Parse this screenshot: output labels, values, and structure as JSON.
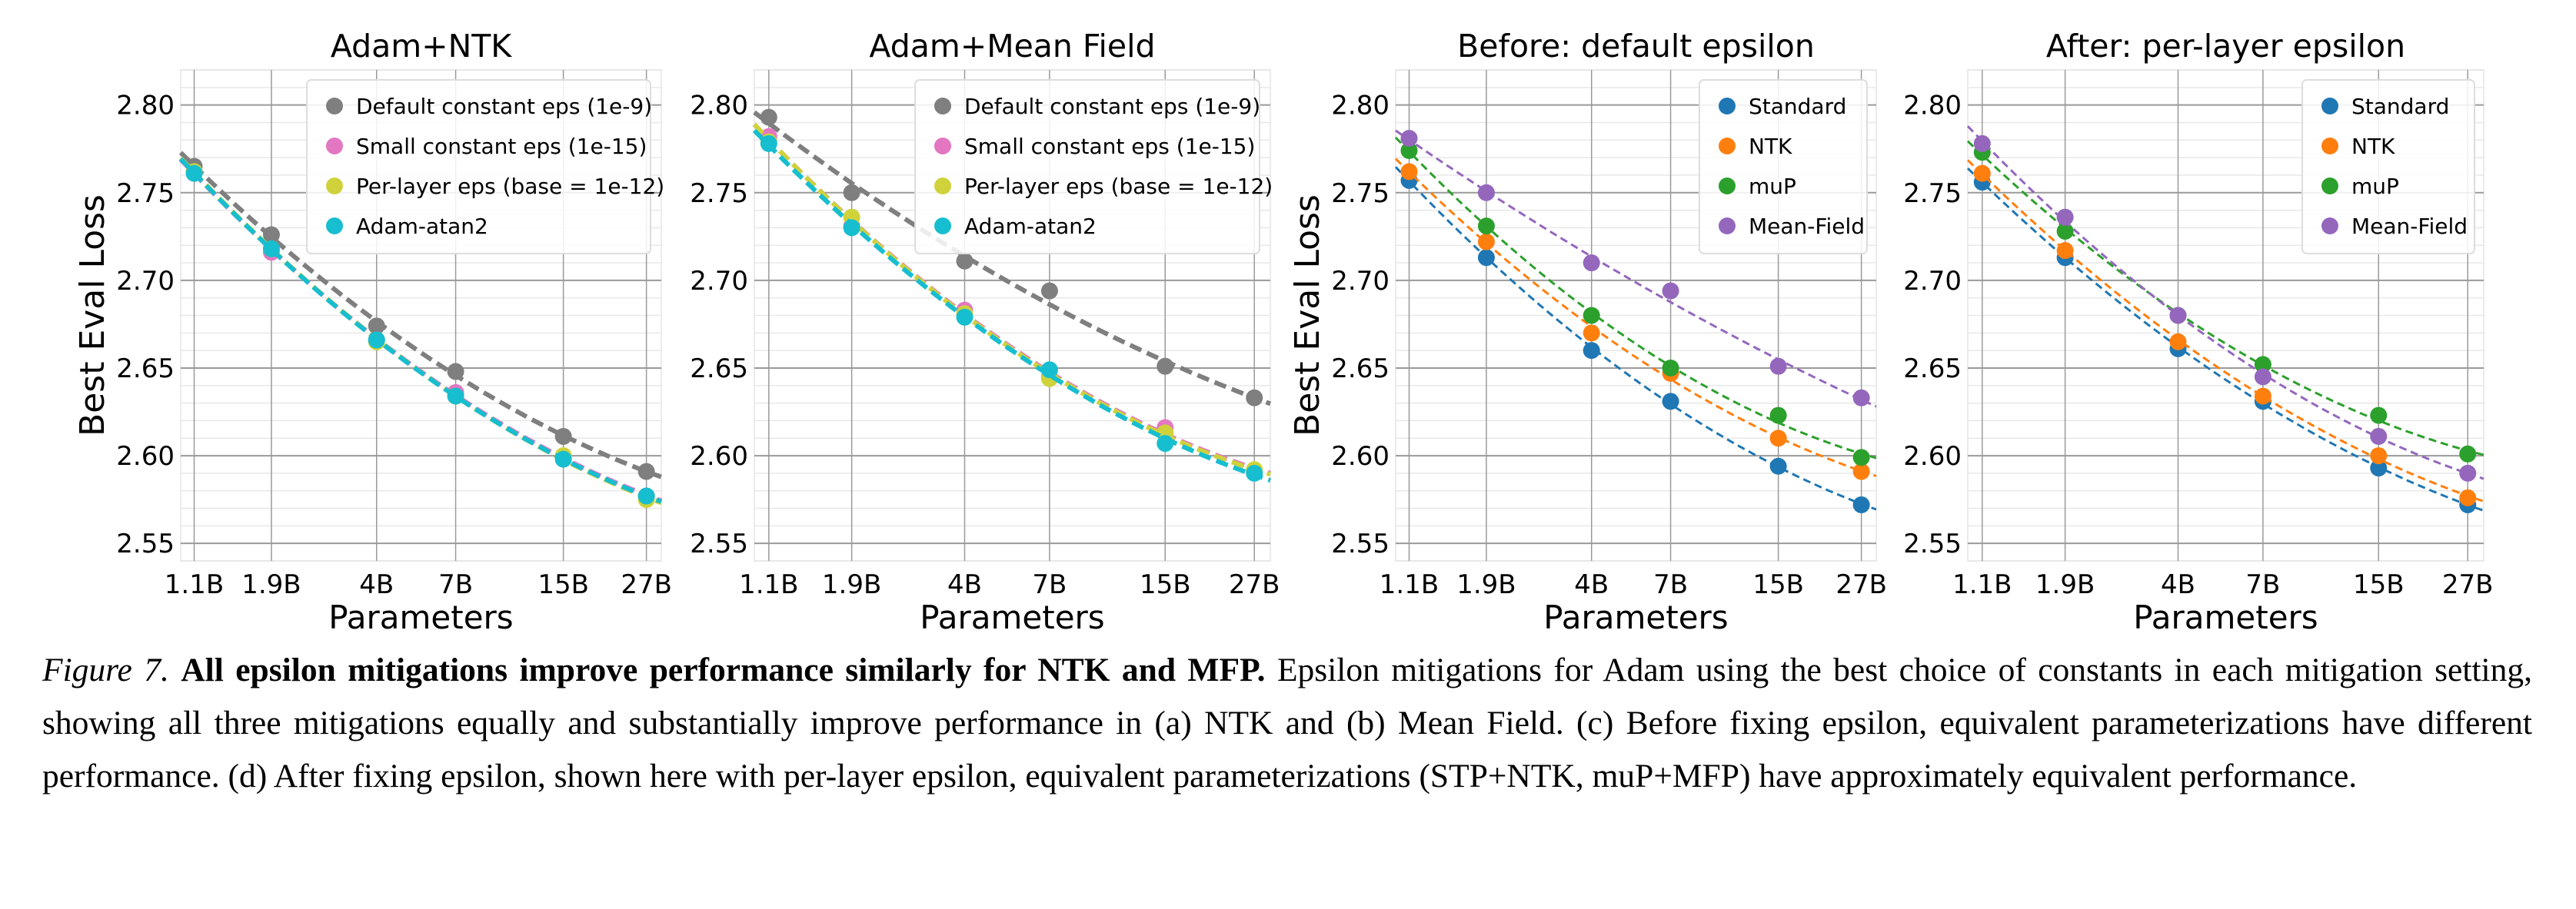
{
  "figure": {
    "label": "Figure 7.",
    "title": "All epsilon mitigations improve performance similarly for NTK and MFP.",
    "body": "Epsilon mitigations for Adam using the best choice of constants in each mitigation setting, showing all three mitigations equally and substantially improve performance in (a) NTK and (b) Mean Field. (c) Before fixing epsilon, equivalent parameterizations have different performance. (d) After fixing epsilon, shown here with per-layer epsilon, equivalent parameterizations (STP+NTK, muP+MFP) have approximately equivalent performance."
  },
  "chart_data": [
    {
      "type": "scatter",
      "title": "Adam+NTK",
      "xlabel": "Parameters",
      "ylabel": "Best Eval Loss",
      "xscale": "log",
      "x": [
        1.1,
        1.9,
        4,
        7,
        15,
        27
      ],
      "xtick_labels": [
        "1.1B",
        "1.9B",
        "4B",
        "7B",
        "15B",
        "27B"
      ],
      "yticks": [
        "2.55",
        "2.60",
        "2.65",
        "2.70",
        "2.75",
        "2.80"
      ],
      "xlim": [
        1.0,
        30
      ],
      "ylim": [
        2.54,
        2.82
      ],
      "grid": true,
      "legend": "top-right",
      "fit_lines": "dashed",
      "series": [
        {
          "name": "Default constant eps (1e-9)",
          "color": "#7f7f7f",
          "values": [
            2.765,
            2.726,
            2.674,
            2.648,
            2.611,
            2.591
          ]
        },
        {
          "name": "Small constant eps (1e-15)",
          "color": "#e377c2",
          "values": [
            2.762,
            2.716,
            2.666,
            2.636,
            2.599,
            2.577
          ]
        },
        {
          "name": "Per-layer eps (base = 1e-12)",
          "color": "#cfd23a",
          "values": [
            2.762,
            2.718,
            2.665,
            2.634,
            2.6,
            2.575
          ]
        },
        {
          "name": "Adam-atan2",
          "color": "#17becf",
          "values": [
            2.761,
            2.718,
            2.666,
            2.634,
            2.598,
            2.577
          ]
        }
      ]
    },
    {
      "type": "scatter",
      "title": "Adam+Mean Field",
      "xlabel": "Parameters",
      "ylabel": "",
      "xscale": "log",
      "x": [
        1.1,
        1.9,
        4,
        7,
        15,
        27
      ],
      "xtick_labels": [
        "1.1B",
        "1.9B",
        "4B",
        "7B",
        "15B",
        "27B"
      ],
      "yticks": [
        "2.55",
        "2.60",
        "2.65",
        "2.70",
        "2.75",
        "2.80"
      ],
      "xlim": [
        1.0,
        30
      ],
      "ylim": [
        2.54,
        2.82
      ],
      "grid": true,
      "legend": "top-right",
      "fit_lines": "dashed",
      "series": [
        {
          "name": "Default constant eps (1e-9)",
          "color": "#7f7f7f",
          "values": [
            2.793,
            2.75,
            2.711,
            2.694,
            2.651,
            2.633
          ]
        },
        {
          "name": "Small constant eps (1e-15)",
          "color": "#e377c2",
          "values": [
            2.782,
            2.731,
            2.683,
            2.645,
            2.616,
            2.591
          ]
        },
        {
          "name": "Per-layer eps (base = 1e-12)",
          "color": "#cfd23a",
          "values": [
            2.779,
            2.736,
            2.681,
            2.644,
            2.613,
            2.592
          ]
        },
        {
          "name": "Adam-atan2",
          "color": "#17becf",
          "values": [
            2.778,
            2.73,
            2.679,
            2.649,
            2.607,
            2.59
          ]
        }
      ]
    },
    {
      "type": "scatter",
      "title": "Before: default epsilon",
      "xlabel": "Parameters",
      "ylabel": "Best Eval Loss",
      "xscale": "log",
      "x": [
        1.1,
        1.9,
        4,
        7,
        15,
        27
      ],
      "xtick_labels": [
        "1.1B",
        "1.9B",
        "4B",
        "7B",
        "15B",
        "27B"
      ],
      "yticks": [
        "2.55",
        "2.60",
        "2.65",
        "2.70",
        "2.75",
        "2.80"
      ],
      "xlim": [
        1.0,
        30
      ],
      "ylim": [
        2.54,
        2.82
      ],
      "grid": true,
      "legend": "top-right",
      "fit_lines": "dashed",
      "series": [
        {
          "name": "Standard",
          "color": "#1f77b4",
          "values": [
            2.757,
            2.713,
            2.66,
            2.631,
            2.594,
            2.572
          ]
        },
        {
          "name": "NTK",
          "color": "#ff7f0e",
          "values": [
            2.762,
            2.722,
            2.67,
            2.647,
            2.61,
            2.591
          ]
        },
        {
          "name": "muP",
          "color": "#2ca02c",
          "values": [
            2.774,
            2.731,
            2.68,
            2.65,
            2.623,
            2.599
          ]
        },
        {
          "name": "Mean-Field",
          "color": "#9467bd",
          "values": [
            2.781,
            2.75,
            2.71,
            2.694,
            2.651,
            2.633
          ]
        }
      ]
    },
    {
      "type": "scatter",
      "title": "After: per-layer epsilon",
      "xlabel": "Parameters",
      "ylabel": "",
      "xscale": "log",
      "x": [
        1.1,
        1.9,
        4,
        7,
        15,
        27
      ],
      "xtick_labels": [
        "1.1B",
        "1.9B",
        "4B",
        "7B",
        "15B",
        "27B"
      ],
      "yticks": [
        "2.55",
        "2.60",
        "2.65",
        "2.70",
        "2.75",
        "2.80"
      ],
      "xlim": [
        1.0,
        30
      ],
      "ylim": [
        2.54,
        2.82
      ],
      "grid": true,
      "legend": "top-right",
      "fit_lines": "dashed",
      "series": [
        {
          "name": "Standard",
          "color": "#1f77b4",
          "values": [
            2.756,
            2.713,
            2.661,
            2.631,
            2.593,
            2.572
          ]
        },
        {
          "name": "NTK",
          "color": "#ff7f0e",
          "values": [
            2.761,
            2.717,
            2.665,
            2.634,
            2.6,
            2.576
          ]
        },
        {
          "name": "muP",
          "color": "#2ca02c",
          "values": [
            2.773,
            2.728,
            2.68,
            2.652,
            2.623,
            2.601
          ]
        },
        {
          "name": "Mean-Field",
          "color": "#9467bd",
          "values": [
            2.778,
            2.736,
            2.68,
            2.645,
            2.611,
            2.59
          ]
        }
      ]
    }
  ]
}
